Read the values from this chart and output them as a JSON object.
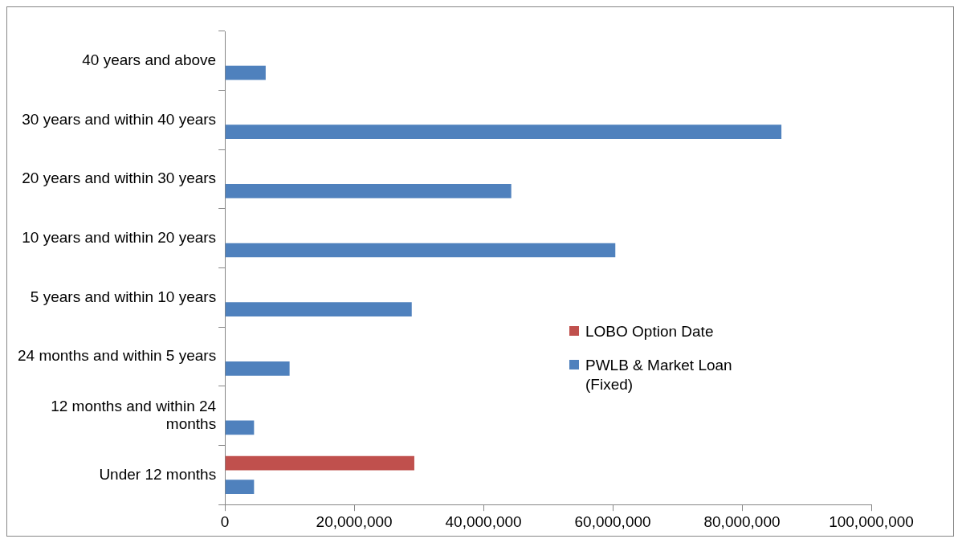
{
  "chart_data": {
    "type": "bar",
    "orientation": "horizontal",
    "categories": [
      "40 years and above",
      "30 years and within 40 years",
      "20 years and within 30 years",
      "10 years and within 20 years",
      "5 years and within 10 years",
      "24 months and within 5 years",
      "12 months and within 24 months",
      "Under 12 months"
    ],
    "series": [
      {
        "name": "LOBO Option Date",
        "color": "#c0504d",
        "values": [
          null,
          null,
          null,
          null,
          null,
          null,
          null,
          29300000
        ]
      },
      {
        "name": "PWLB & Market Loan (Fixed)",
        "color": "#4f81bd",
        "values": [
          6300000,
          86100000,
          44300000,
          60400000,
          28900000,
          10000000,
          4500000,
          4500000
        ]
      }
    ],
    "xlim": [
      0,
      100000000
    ],
    "xticks": [
      0,
      {
        "value": 20000000,
        "label": "20,000,000"
      },
      {
        "value": 40000000,
        "label": "40,000,000"
      },
      {
        "value": 60000000,
        "label": "60,000,000"
      },
      {
        "value": 80000000,
        "label": "80,000,000"
      },
      {
        "value": 100000000,
        "label": "100,000,000"
      }
    ],
    "grid": false,
    "legend": "right"
  }
}
